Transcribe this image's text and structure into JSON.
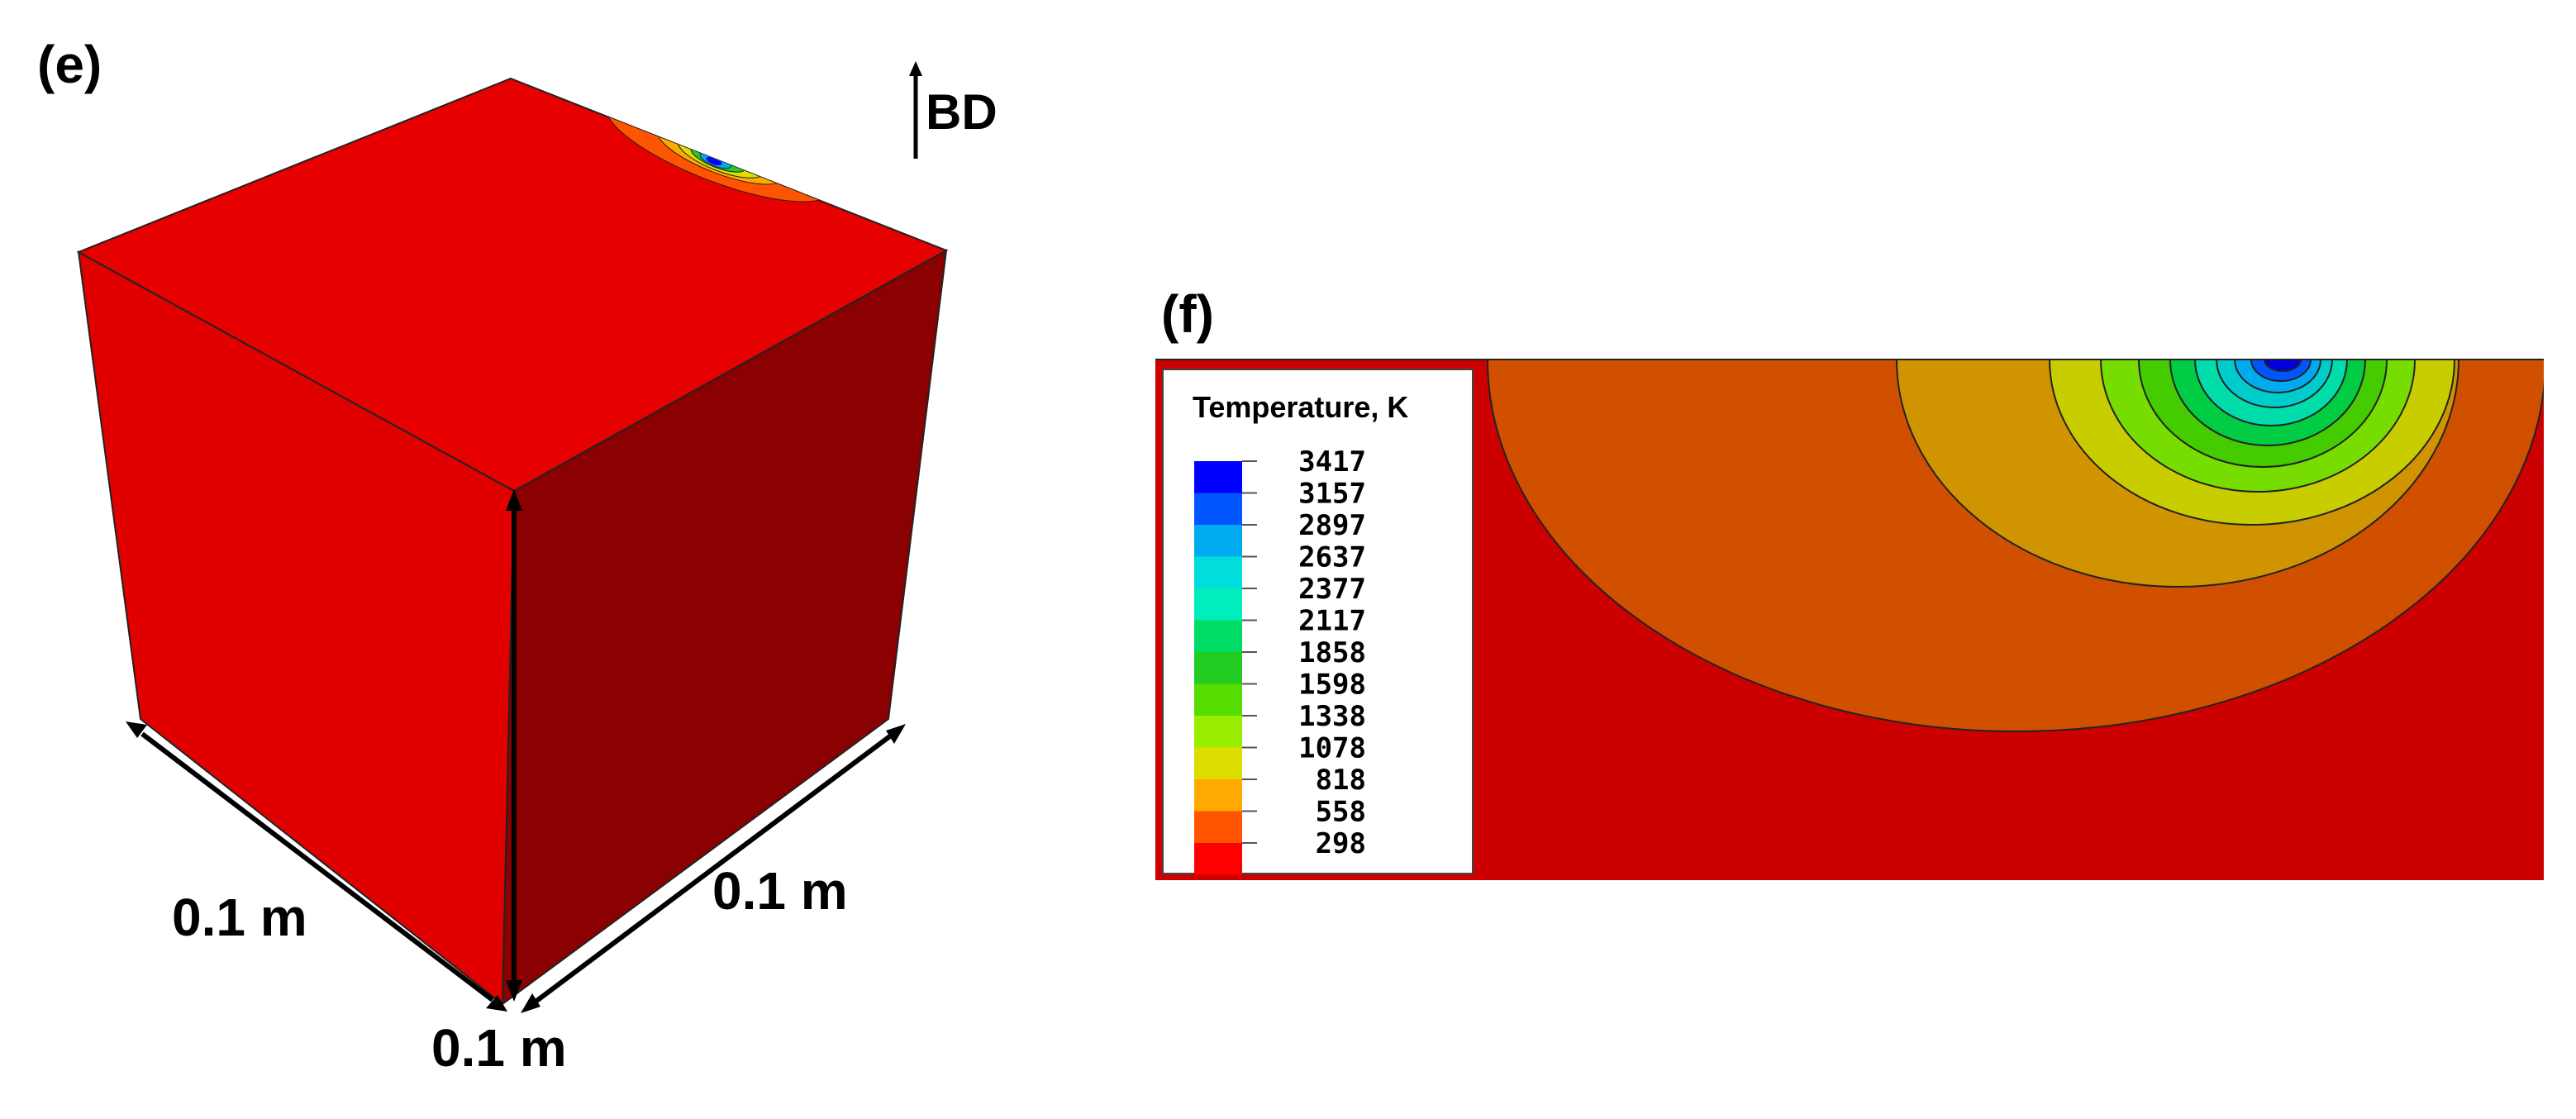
{
  "panel_e": {
    "label": "(e)",
    "build_direction": "BD",
    "dimensions": {
      "left": "0.1 m",
      "right": "0.1 m",
      "height": "0.1 m"
    }
  },
  "panel_f": {
    "label": "(f)",
    "legend": {
      "title": "Temperature, K",
      "values": [
        "3417",
        "3157",
        "2897",
        "2637",
        "2377",
        "2117",
        "1858",
        "1598",
        "1338",
        "1078",
        "818",
        "558",
        "298"
      ],
      "colors": [
        "#0000ff",
        "#0055ff",
        "#00aaee",
        "#00dddd",
        "#00eebb",
        "#00dd66",
        "#22cc22",
        "#55dd00",
        "#99ee00",
        "#dddd00",
        "#ffaa00",
        "#ff5500",
        "#ff0000"
      ]
    }
  },
  "colors": {
    "cube_top": "#e60000",
    "cube_left": "#e00000",
    "cube_right": "#8b0000",
    "section_background": "#cc0000",
    "zone_orange": "#d05000",
    "zone_amber": "#cf9400",
    "zone_yellow": "#c8cd00"
  }
}
